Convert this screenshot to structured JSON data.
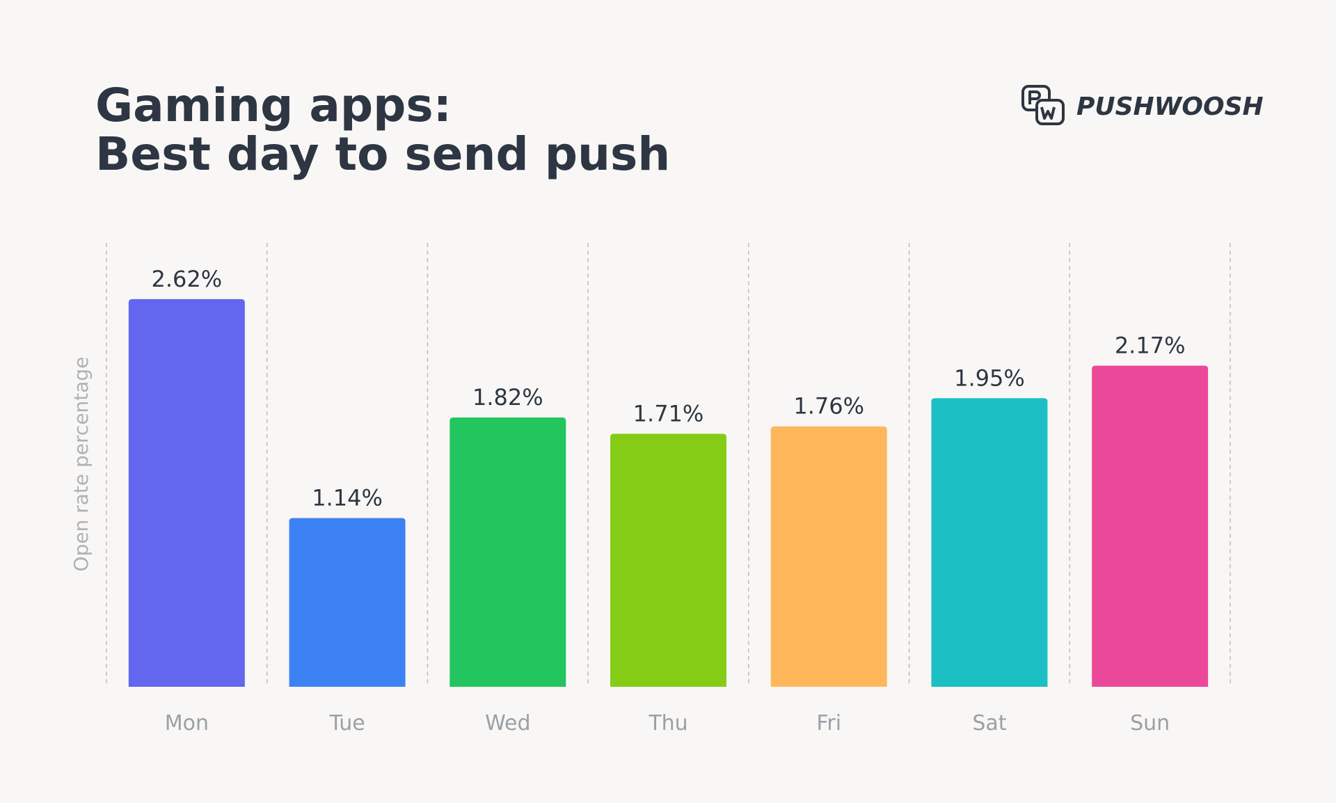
{
  "brand": "PUSHWOOSH",
  "chart_data": {
    "type": "bar",
    "title": [
      "Gaming apps:",
      "Best day to send push"
    ],
    "y_label": "Open rate percentage",
    "categories": [
      "Mon",
      "Tue",
      "Wed",
      "Thu",
      "Fri",
      "Sat",
      "Sun"
    ],
    "values": [
      2.62,
      1.14,
      1.82,
      1.71,
      1.76,
      1.95,
      2.17
    ],
    "value_labels": [
      "2.62%",
      "1.14%",
      "1.82%",
      "1.71%",
      "1.76%",
      "1.95%",
      "2.17%"
    ],
    "colors": [
      "#6366ee",
      "#3d82f4",
      "#22c55e",
      "#84cc16",
      "#ffb75c",
      "#1cc0c4",
      "#ec4899"
    ],
    "ylim": [
      0,
      3
    ]
  }
}
